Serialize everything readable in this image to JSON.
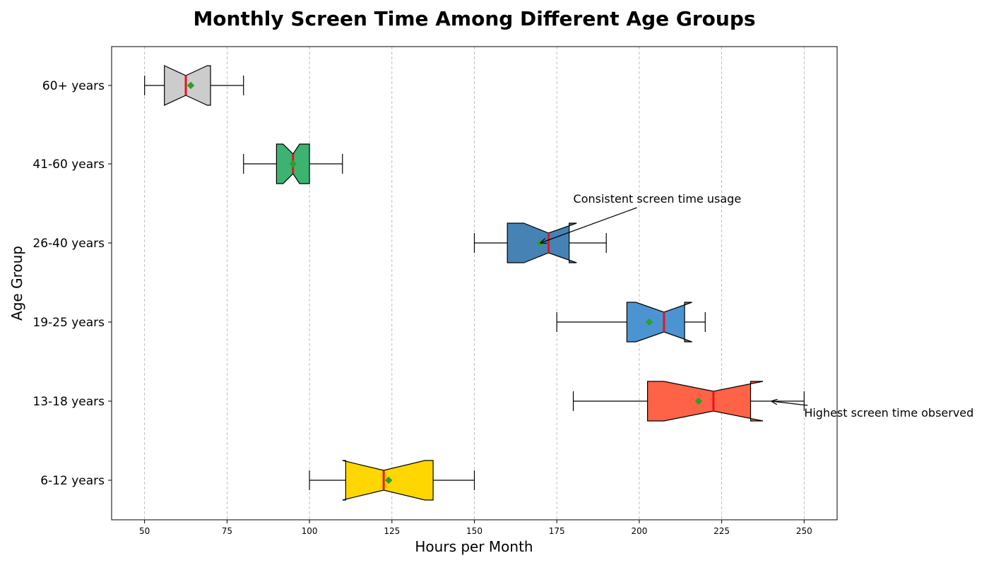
{
  "chart_data": {
    "type": "boxplot",
    "orientation": "horizontal",
    "notched": true,
    "title": "Monthly Screen Time Among Different Age Groups",
    "xlabel": "Hours per Month",
    "ylabel": "Age Group",
    "xlim": [
      40,
      260
    ],
    "xticks": [
      50,
      75,
      100,
      125,
      150,
      175,
      200,
      225,
      250
    ],
    "grid": "x-dashed",
    "median_color": "#e8141c",
    "mean_color": "#2ca02c",
    "groups": [
      {
        "label": "6-12 years",
        "min": 100,
        "q1": 111,
        "median": 122.5,
        "q3": 137.5,
        "max": 150,
        "notch_low": 110,
        "notch_high": 135,
        "mean": 124,
        "color": "#ffd700"
      },
      {
        "label": "13-18 years",
        "min": 180,
        "q1": 202.5,
        "median": 222.5,
        "q3": 233.75,
        "max": 250,
        "notch_low": 207.5,
        "notch_high": 237.5,
        "mean": 218,
        "color": "#ff6347"
      },
      {
        "label": "19-25 years",
        "min": 175,
        "q1": 196.25,
        "median": 207.5,
        "q3": 213.75,
        "max": 220,
        "notch_low": 199,
        "notch_high": 216,
        "mean": 203,
        "color": "#4c93d2"
      },
      {
        "label": "26-40 years",
        "min": 150,
        "q1": 160,
        "median": 172.5,
        "q3": 178.75,
        "max": 190,
        "notch_low": 165,
        "notch_high": 181,
        "mean": 170,
        "color": "#4682b4"
      },
      {
        "label": "41-60 years",
        "min": 80,
        "q1": 90,
        "median": 95,
        "q3": 100,
        "max": 110,
        "notch_low": 92,
        "notch_high": 97,
        "mean": 95,
        "color": "#3cb371"
      },
      {
        "label": "60+ years",
        "min": 50,
        "q1": 56,
        "median": 62.5,
        "q3": 70,
        "max": 80,
        "notch_low": 56,
        "notch_high": 69,
        "mean": 64,
        "color": "#cccccc"
      }
    ],
    "annotations": [
      {
        "text": "Highest screen time observed",
        "target": {
          "group": "13-18 years",
          "x": 240
        },
        "text_anchor_x": 250
      },
      {
        "text": "Consistent screen time usage",
        "target": {
          "group": "26-40 years",
          "x": 170
        },
        "text_anchor_x": 180
      }
    ]
  }
}
